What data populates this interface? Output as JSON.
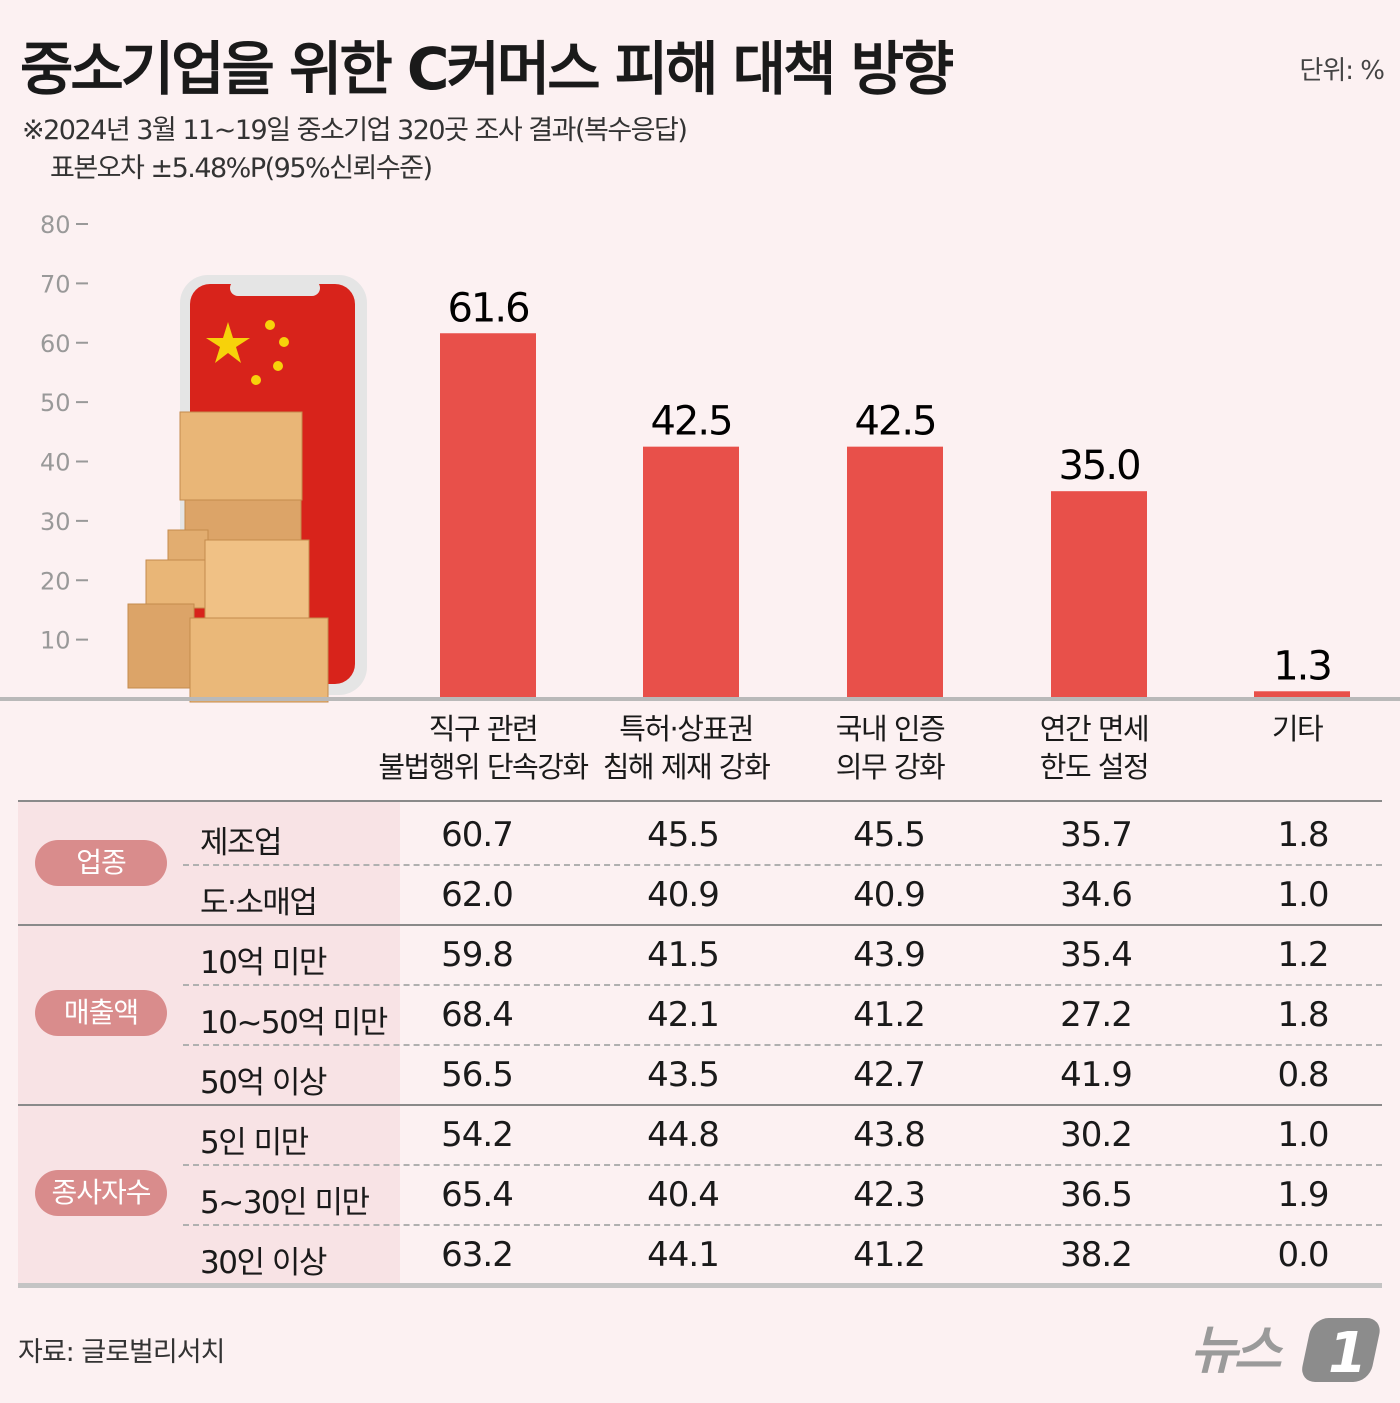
{
  "header": {
    "title": "중소기업을 위한 C커머스 피해 대책 방향",
    "unit": "단위: %",
    "note1": "※2024년 3월 11~19일 중소기업 320곳 조사 결과(복수응답)",
    "note2": "표본오차 ±5.48%P(95%신뢰수준)"
  },
  "chart_data": {
    "type": "bar",
    "categories": [
      "직구 관련\n불법행위 단속강화",
      "특허·상표권\n침해 제재 강화",
      "국내 인증\n의무 강화",
      "연간 면세\n한도 설정",
      "기타"
    ],
    "values": [
      61.6,
      42.5,
      42.5,
      35.0,
      1.3
    ],
    "value_labels": [
      "61.6",
      "42.5",
      "42.5",
      "35.0",
      "1.3"
    ],
    "yticks": [
      "10",
      "20",
      "30",
      "40",
      "50",
      "60",
      "70",
      "80"
    ],
    "ylim": [
      0,
      80
    ],
    "bar_color": "#e8504a",
    "grid": false
  },
  "table": {
    "groups": [
      {
        "name": "업종",
        "rows": [
          {
            "label": "제조업",
            "values": [
              "60.7",
              "45.5",
              "45.5",
              "35.7",
              "1.8"
            ]
          },
          {
            "label": "도·소매업",
            "values": [
              "62.0",
              "40.9",
              "40.9",
              "34.6",
              "1.0"
            ]
          }
        ]
      },
      {
        "name": "매출액",
        "rows": [
          {
            "label": "10억 미만",
            "values": [
              "59.8",
              "41.5",
              "43.9",
              "35.4",
              "1.2"
            ]
          },
          {
            "label": "10~50억 미만",
            "values": [
              "68.4",
              "42.1",
              "41.2",
              "27.2",
              "1.8"
            ]
          },
          {
            "label": "50억 이상",
            "values": [
              "56.5",
              "43.5",
              "42.7",
              "41.9",
              "0.8"
            ]
          }
        ]
      },
      {
        "name": "종사자수",
        "rows": [
          {
            "label": "5인 미만",
            "values": [
              "54.2",
              "44.8",
              "43.8",
              "30.2",
              "1.0"
            ]
          },
          {
            "label": "5~30인 미만",
            "values": [
              "65.4",
              "40.4",
              "42.3",
              "36.5",
              "1.9"
            ]
          },
          {
            "label": "30인 이상",
            "values": [
              "63.2",
              "44.1",
              "41.2",
              "38.2",
              "0.0"
            ]
          }
        ]
      }
    ],
    "pill_color": "#d98c8c"
  },
  "footer": {
    "source": "자료: 글로벌리서치",
    "logo": "뉴스1"
  }
}
